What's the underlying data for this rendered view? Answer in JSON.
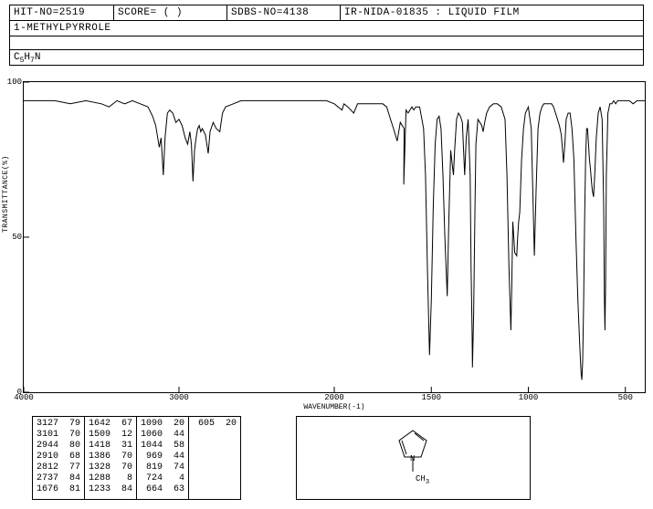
{
  "header": {
    "hit_no": "HIT-NO=2519",
    "score": "SCORE=  (   )",
    "sdbs_no": "SDBS-NO=4138",
    "ir_info": "IR-NIDA-01835 : LIQUID FILM"
  },
  "compound_name": "1-METHYLPYRROLE",
  "formula_parts": [
    "C",
    "5",
    "H",
    "7",
    "N"
  ],
  "chart": {
    "type": "line",
    "xlim": [
      4000,
      400
    ],
    "ylim": [
      0,
      100
    ],
    "xlabel": "WAVENUMBER(-1)",
    "ylabel": "TRANSMITTANCE(%)",
    "xticks": [
      4000,
      3000,
      2000,
      1500,
      1000,
      500
    ],
    "yticks": [
      0,
      50,
      100
    ],
    "line_color": "#000000",
    "background_color": "#ffffff",
    "points": [
      [
        4000,
        94
      ],
      [
        3900,
        94
      ],
      [
        3800,
        94
      ],
      [
        3700,
        93
      ],
      [
        3600,
        94
      ],
      [
        3500,
        93
      ],
      [
        3450,
        92
      ],
      [
        3400,
        94
      ],
      [
        3350,
        93
      ],
      [
        3300,
        94
      ],
      [
        3250,
        93
      ],
      [
        3200,
        92
      ],
      [
        3170,
        89
      ],
      [
        3150,
        86
      ],
      [
        3127,
        79
      ],
      [
        3115,
        82
      ],
      [
        3101,
        70
      ],
      [
        3090,
        82
      ],
      [
        3075,
        90
      ],
      [
        3060,
        91
      ],
      [
        3040,
        90
      ],
      [
        3020,
        87
      ],
      [
        3000,
        88
      ],
      [
        2980,
        86
      ],
      [
        2960,
        82
      ],
      [
        2944,
        80
      ],
      [
        2930,
        84
      ],
      [
        2920,
        80
      ],
      [
        2910,
        68
      ],
      [
        2900,
        78
      ],
      [
        2890,
        82
      ],
      [
        2880,
        85
      ],
      [
        2870,
        86
      ],
      [
        2860,
        84
      ],
      [
        2850,
        85
      ],
      [
        2830,
        83
      ],
      [
        2812,
        77
      ],
      [
        2800,
        84
      ],
      [
        2780,
        87
      ],
      [
        2760,
        85
      ],
      [
        2737,
        84
      ],
      [
        2720,
        90
      ],
      [
        2700,
        92
      ],
      [
        2650,
        93
      ],
      [
        2600,
        94
      ],
      [
        2550,
        94
      ],
      [
        2500,
        94
      ],
      [
        2400,
        94
      ],
      [
        2300,
        94
      ],
      [
        2200,
        94
      ],
      [
        2150,
        94
      ],
      [
        2100,
        94
      ],
      [
        2050,
        94
      ],
      [
        2000,
        93
      ],
      [
        1960,
        91
      ],
      [
        1950,
        93
      ],
      [
        1930,
        92
      ],
      [
        1900,
        90
      ],
      [
        1880,
        93
      ],
      [
        1850,
        93
      ],
      [
        1800,
        93
      ],
      [
        1780,
        93
      ],
      [
        1760,
        93
      ],
      [
        1750,
        93
      ],
      [
        1730,
        92
      ],
      [
        1710,
        88
      ],
      [
        1700,
        86
      ],
      [
        1690,
        84
      ],
      [
        1676,
        81
      ],
      [
        1660,
        87
      ],
      [
        1640,
        85
      ],
      [
        1642,
        67
      ],
      [
        1630,
        91
      ],
      [
        1620,
        90
      ],
      [
        1600,
        92
      ],
      [
        1590,
        91
      ],
      [
        1580,
        92
      ],
      [
        1560,
        92
      ],
      [
        1540,
        85
      ],
      [
        1530,
        70
      ],
      [
        1520,
        40
      ],
      [
        1509,
        12
      ],
      [
        1500,
        30
      ],
      [
        1490,
        60
      ],
      [
        1480,
        80
      ],
      [
        1470,
        88
      ],
      [
        1460,
        89
      ],
      [
        1450,
        85
      ],
      [
        1440,
        70
      ],
      [
        1430,
        50
      ],
      [
        1418,
        31
      ],
      [
        1410,
        55
      ],
      [
        1400,
        78
      ],
      [
        1395,
        75
      ],
      [
        1386,
        70
      ],
      [
        1380,
        78
      ],
      [
        1370,
        88
      ],
      [
        1360,
        90
      ],
      [
        1350,
        89
      ],
      [
        1340,
        87
      ],
      [
        1335,
        80
      ],
      [
        1328,
        70
      ],
      [
        1320,
        82
      ],
      [
        1310,
        88
      ],
      [
        1300,
        70
      ],
      [
        1295,
        40
      ],
      [
        1290,
        20
      ],
      [
        1288,
        8
      ],
      [
        1282,
        25
      ],
      [
        1275,
        60
      ],
      [
        1270,
        80
      ],
      [
        1260,
        88
      ],
      [
        1250,
        87
      ],
      [
        1240,
        86
      ],
      [
        1233,
        84
      ],
      [
        1225,
        87
      ],
      [
        1215,
        90
      ],
      [
        1200,
        92
      ],
      [
        1180,
        93
      ],
      [
        1160,
        93
      ],
      [
        1140,
        92
      ],
      [
        1120,
        88
      ],
      [
        1110,
        70
      ],
      [
        1100,
        40
      ],
      [
        1090,
        20
      ],
      [
        1085,
        35
      ],
      [
        1080,
        55
      ],
      [
        1075,
        50
      ],
      [
        1070,
        45
      ],
      [
        1060,
        44
      ],
      [
        1055,
        50
      ],
      [
        1050,
        55
      ],
      [
        1044,
        58
      ],
      [
        1035,
        75
      ],
      [
        1025,
        85
      ],
      [
        1015,
        90
      ],
      [
        1000,
        92
      ],
      [
        985,
        85
      ],
      [
        975,
        60
      ],
      [
        969,
        44
      ],
      [
        960,
        65
      ],
      [
        950,
        85
      ],
      [
        940,
        90
      ],
      [
        930,
        92
      ],
      [
        920,
        93
      ],
      [
        910,
        93
      ],
      [
        900,
        93
      ],
      [
        890,
        93
      ],
      [
        880,
        93
      ],
      [
        870,
        92
      ],
      [
        860,
        90
      ],
      [
        850,
        88
      ],
      [
        840,
        86
      ],
      [
        830,
        83
      ],
      [
        825,
        79
      ],
      [
        819,
        74
      ],
      [
        812,
        80
      ],
      [
        805,
        88
      ],
      [
        795,
        90
      ],
      [
        785,
        90
      ],
      [
        775,
        85
      ],
      [
        765,
        75
      ],
      [
        755,
        50
      ],
      [
        745,
        30
      ],
      [
        735,
        15
      ],
      [
        728,
        6
      ],
      [
        724,
        4
      ],
      [
        720,
        10
      ],
      [
        715,
        30
      ],
      [
        710,
        55
      ],
      [
        705,
        75
      ],
      [
        700,
        85
      ],
      [
        695,
        85
      ],
      [
        690,
        80
      ],
      [
        685,
        75
      ],
      [
        680,
        72
      ],
      [
        675,
        68
      ],
      [
        670,
        65
      ],
      [
        664,
        63
      ],
      [
        658,
        70
      ],
      [
        650,
        82
      ],
      [
        640,
        90
      ],
      [
        630,
        92
      ],
      [
        620,
        88
      ],
      [
        612,
        60
      ],
      [
        608,
        30
      ],
      [
        605,
        20
      ],
      [
        602,
        35
      ],
      [
        598,
        70
      ],
      [
        590,
        90
      ],
      [
        580,
        93
      ],
      [
        570,
        93
      ],
      [
        560,
        94
      ],
      [
        550,
        93
      ],
      [
        540,
        94
      ],
      [
        530,
        94
      ],
      [
        520,
        94
      ],
      [
        510,
        94
      ],
      [
        500,
        94
      ],
      [
        480,
        94
      ],
      [
        460,
        93
      ],
      [
        440,
        94
      ],
      [
        420,
        94
      ],
      [
        400,
        94
      ]
    ]
  },
  "peak_table": {
    "columns": [
      [
        "3127  79",
        "3101  70",
        "2944  80",
        "2910  68",
        "2812  77",
        "2737  84",
        "1676  81"
      ],
      [
        "1642  67",
        "1509  12",
        "1418  31",
        "1386  70",
        "1328  70",
        "1288   8",
        "1233  84"
      ],
      [
        "1090  20",
        "1060  44",
        "1044  58",
        " 969  44",
        " 819  74",
        " 724   4",
        " 664  63"
      ],
      [
        " 605  20"
      ]
    ]
  },
  "structure_label": "CH",
  "structure_sub": "3"
}
